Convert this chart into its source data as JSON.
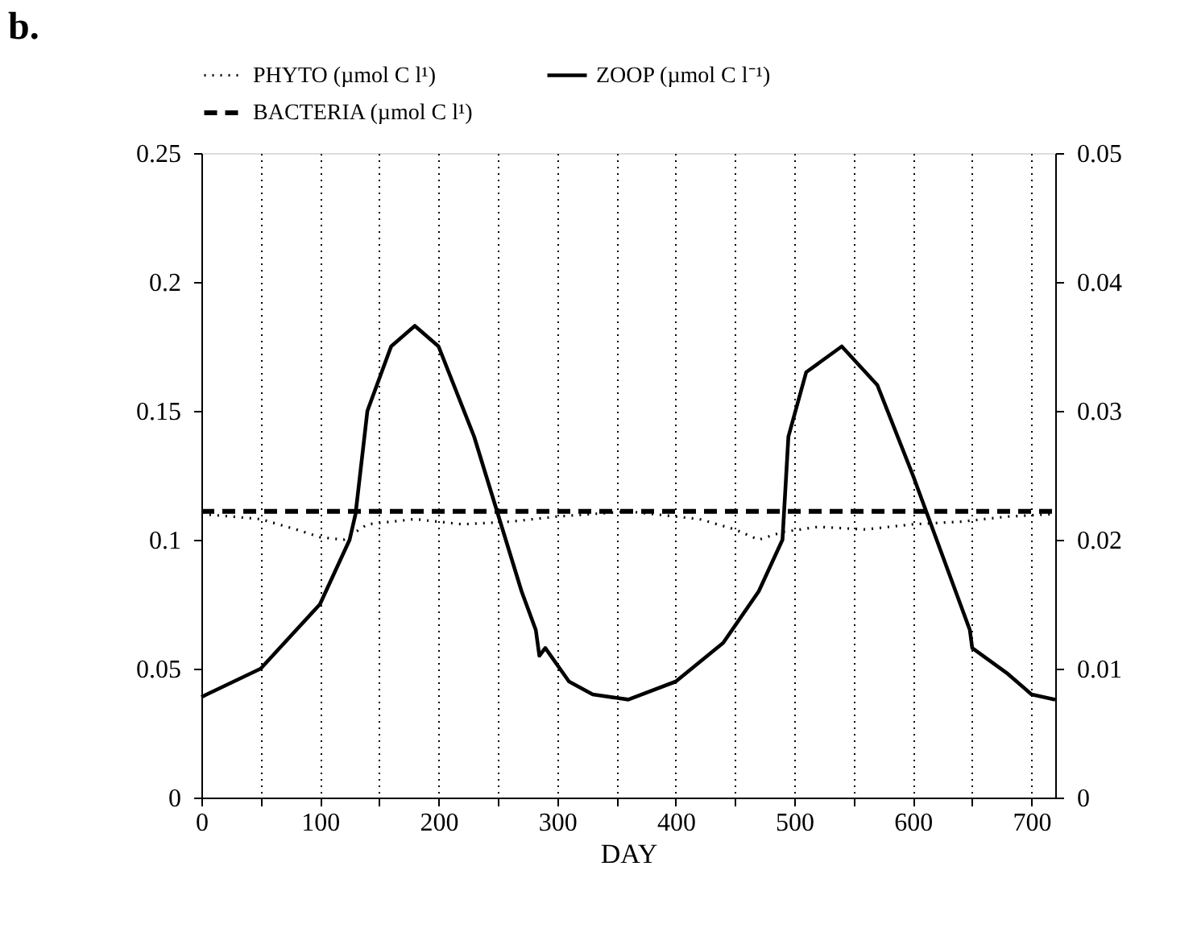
{
  "chart_data": {
    "type": "line",
    "title": "b.",
    "xlabel": "DAY",
    "xlim": [
      0,
      720
    ],
    "xticks": [
      0,
      {
        "value": 50,
        "label": null
      },
      100,
      {
        "value": 150,
        "label": null
      },
      200,
      {
        "value": 250,
        "label": null
      },
      300,
      {
        "value": 350,
        "label": null
      },
      400,
      {
        "value": 450,
        "label": null
      },
      500,
      {
        "value": 550,
        "label": null
      },
      600,
      {
        "value": 650,
        "label": null
      },
      700
    ],
    "ylim": [
      0,
      0.25
    ],
    "yticks": [
      0,
      0.05,
      0.1,
      0.15,
      0.2,
      0.25
    ],
    "y2lim": [
      0,
      0.05
    ],
    "y2ticks": [
      0,
      0.01,
      0.02,
      0.03,
      0.04,
      0.05
    ],
    "grid": "x",
    "legend": "top",
    "series": [
      {
        "name": "PHYTO (µmol C l¹)",
        "color": "#000000",
        "line_style": "dotted",
        "x": [
          0,
          50,
          80,
          100,
          120,
          140,
          180,
          220,
          260,
          300,
          360,
          420,
          450,
          470,
          490,
          520,
          560,
          600,
          640,
          680,
          720
        ],
        "values": [
          0.11,
          0.108,
          0.104,
          0.101,
          0.1,
          0.106,
          0.108,
          0.106,
          0.107,
          0.109,
          0.111,
          0.108,
          0.104,
          0.1,
          0.103,
          0.105,
          0.104,
          0.106,
          0.107,
          0.109,
          0.11
        ]
      },
      {
        "name": "ZOOP (µmol C l⁻¹)",
        "color": "#000000",
        "line_style": "solid",
        "axis": "y2",
        "x": [
          0,
          50,
          100,
          125,
          130,
          140,
          160,
          180,
          200,
          230,
          250,
          270,
          282,
          285,
          290,
          310,
          330,
          360,
          400,
          440,
          470,
          490,
          495,
          510,
          540,
          570,
          600,
          620,
          640,
          648,
          650,
          680,
          700,
          720
        ],
        "values": [
          0.0078,
          0.01,
          0.015,
          0.02,
          0.022,
          0.03,
          0.035,
          0.0366,
          0.035,
          0.028,
          0.022,
          0.016,
          0.013,
          0.011,
          0.0116,
          0.009,
          0.008,
          0.0076,
          0.009,
          0.012,
          0.016,
          0.02,
          0.028,
          0.033,
          0.035,
          0.032,
          0.025,
          0.02,
          0.015,
          0.013,
          0.0116,
          0.0096,
          0.008,
          0.0076
        ]
      },
      {
        "name": "BACTERIA (µmol C l¹)",
        "color": "#000000",
        "line_style": "dashed",
        "x": [
          0,
          720
        ],
        "values": [
          0.111,
          0.111
        ]
      }
    ]
  }
}
